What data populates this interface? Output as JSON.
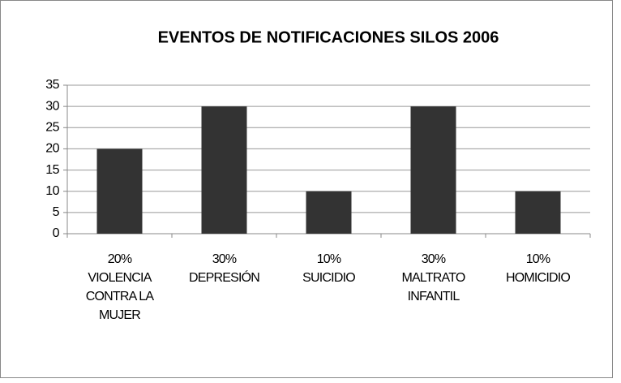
{
  "chart_data": {
    "type": "bar",
    "title": "EVENTOS DE NOTIFICACIONES SILOS 2006",
    "categories": [
      "20%\nVIOLENCIA\nCONTRA LA\nMUJER",
      "30%\nDEPRESIÓN",
      "10%\nSUICIDIO",
      "30%\nMALTRATO\nINFANTIL",
      "10%\nHOMICIDIO"
    ],
    "values": [
      20,
      30,
      10,
      30,
      10
    ],
    "color": "#333333",
    "ylim": [
      0,
      35
    ],
    "yticks": [
      0,
      5,
      10,
      15,
      20,
      25,
      30,
      35
    ],
    "grid": true
  }
}
